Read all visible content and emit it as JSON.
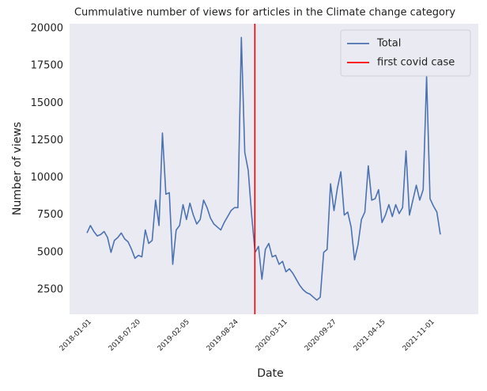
{
  "chart_data": {
    "type": "line",
    "title": "Cummulative number of views for articles in the Climate change category",
    "xlabel": "Date",
    "ylabel": "Number of views",
    "x": [
      "2018-01-01",
      "2018-01-15",
      "2018-01-29",
      "2018-02-12",
      "2018-02-26",
      "2018-03-12",
      "2018-03-26",
      "2018-04-09",
      "2018-04-23",
      "2018-05-07",
      "2018-05-21",
      "2018-06-04",
      "2018-06-18",
      "2018-07-02",
      "2018-07-16",
      "2018-07-30",
      "2018-08-13",
      "2018-08-27",
      "2018-09-10",
      "2018-09-24",
      "2018-10-08",
      "2018-10-22",
      "2018-11-05",
      "2018-11-19",
      "2018-12-03",
      "2018-12-17",
      "2018-12-31",
      "2019-01-14",
      "2019-01-28",
      "2019-02-11",
      "2019-02-25",
      "2019-03-11",
      "2019-03-25",
      "2019-04-08",
      "2019-04-22",
      "2019-05-06",
      "2019-05-20",
      "2019-06-03",
      "2019-06-17",
      "2019-07-01",
      "2019-07-15",
      "2019-07-29",
      "2019-08-12",
      "2019-08-26",
      "2019-09-09",
      "2019-09-23",
      "2019-10-07",
      "2019-10-21",
      "2019-11-04",
      "2019-11-18",
      "2019-12-02",
      "2019-12-16",
      "2019-12-30",
      "2020-01-13",
      "2020-01-27",
      "2020-02-10",
      "2020-02-24",
      "2020-03-09",
      "2020-03-23",
      "2020-04-06",
      "2020-04-20",
      "2020-05-04",
      "2020-05-18",
      "2020-06-01",
      "2020-06-15",
      "2020-06-29",
      "2020-07-13",
      "2020-07-27",
      "2020-08-10",
      "2020-08-24",
      "2020-09-07",
      "2020-09-21",
      "2020-10-05",
      "2020-10-19",
      "2020-11-02",
      "2020-11-16",
      "2020-11-30",
      "2020-12-14",
      "2020-12-28",
      "2021-01-11",
      "2021-01-25",
      "2021-02-08",
      "2021-02-22",
      "2021-03-08",
      "2021-03-22",
      "2021-04-05",
      "2021-04-19",
      "2021-05-03",
      "2021-05-17",
      "2021-05-31",
      "2021-06-14",
      "2021-06-28",
      "2021-07-12",
      "2021-07-26",
      "2021-08-09",
      "2021-08-23",
      "2021-09-06",
      "2021-09-20",
      "2021-10-04",
      "2021-10-18",
      "2021-11-01",
      "2021-11-15",
      "2021-11-29",
      "2021-12-13"
    ],
    "series": [
      {
        "name": "Total",
        "color": "#4c72b0",
        "values": [
          6300,
          6800,
          6400,
          6100,
          6200,
          6400,
          6000,
          5000,
          5800,
          6000,
          6300,
          5900,
          5700,
          5200,
          4600,
          4800,
          4700,
          6500,
          5600,
          5800,
          8500,
          6800,
          13000,
          8900,
          9000,
          4200,
          6500,
          6800,
          8200,
          7200,
          8300,
          7500,
          6900,
          7200,
          8500,
          8000,
          7300,
          6900,
          6700,
          6500,
          7000,
          7400,
          7800,
          8000,
          8000,
          19400,
          11700,
          10500,
          7500,
          5000,
          5400,
          3200,
          5200,
          5600,
          4700,
          4800,
          4200,
          4400,
          3700,
          3900,
          3600,
          3200,
          2800,
          2500,
          2300,
          2200,
          2000,
          1800,
          2000,
          5000,
          5200,
          9600,
          7800,
          9300,
          10400,
          7500,
          7700,
          6700,
          4500,
          5500,
          7200,
          7700,
          10800,
          8500,
          8600,
          9200,
          7000,
          7500,
          8200,
          7400,
          8200,
          7600,
          8000,
          11800,
          7500,
          8500,
          9500,
          8500,
          9200,
          16800,
          8600,
          8100,
          7700,
          6200
        ]
      }
    ],
    "vlines": [
      {
        "name": "first covid case",
        "x": "2019-11-17",
        "color": "#ff0000"
      }
    ],
    "xlim": [
      "2017-10-22",
      "2022-05-17"
    ],
    "xticks": [
      "2018-01-01",
      "2018-07-20",
      "2019-02-05",
      "2019-08-24",
      "2020-03-11",
      "2020-09-27",
      "2021-04-15",
      "2021-11-01"
    ],
    "ylim": [
      856,
      20320
    ],
    "yticks": [
      2500,
      5000,
      7500,
      10000,
      12500,
      15000,
      17500,
      20000
    ],
    "grid": false,
    "legend": "upper right"
  }
}
